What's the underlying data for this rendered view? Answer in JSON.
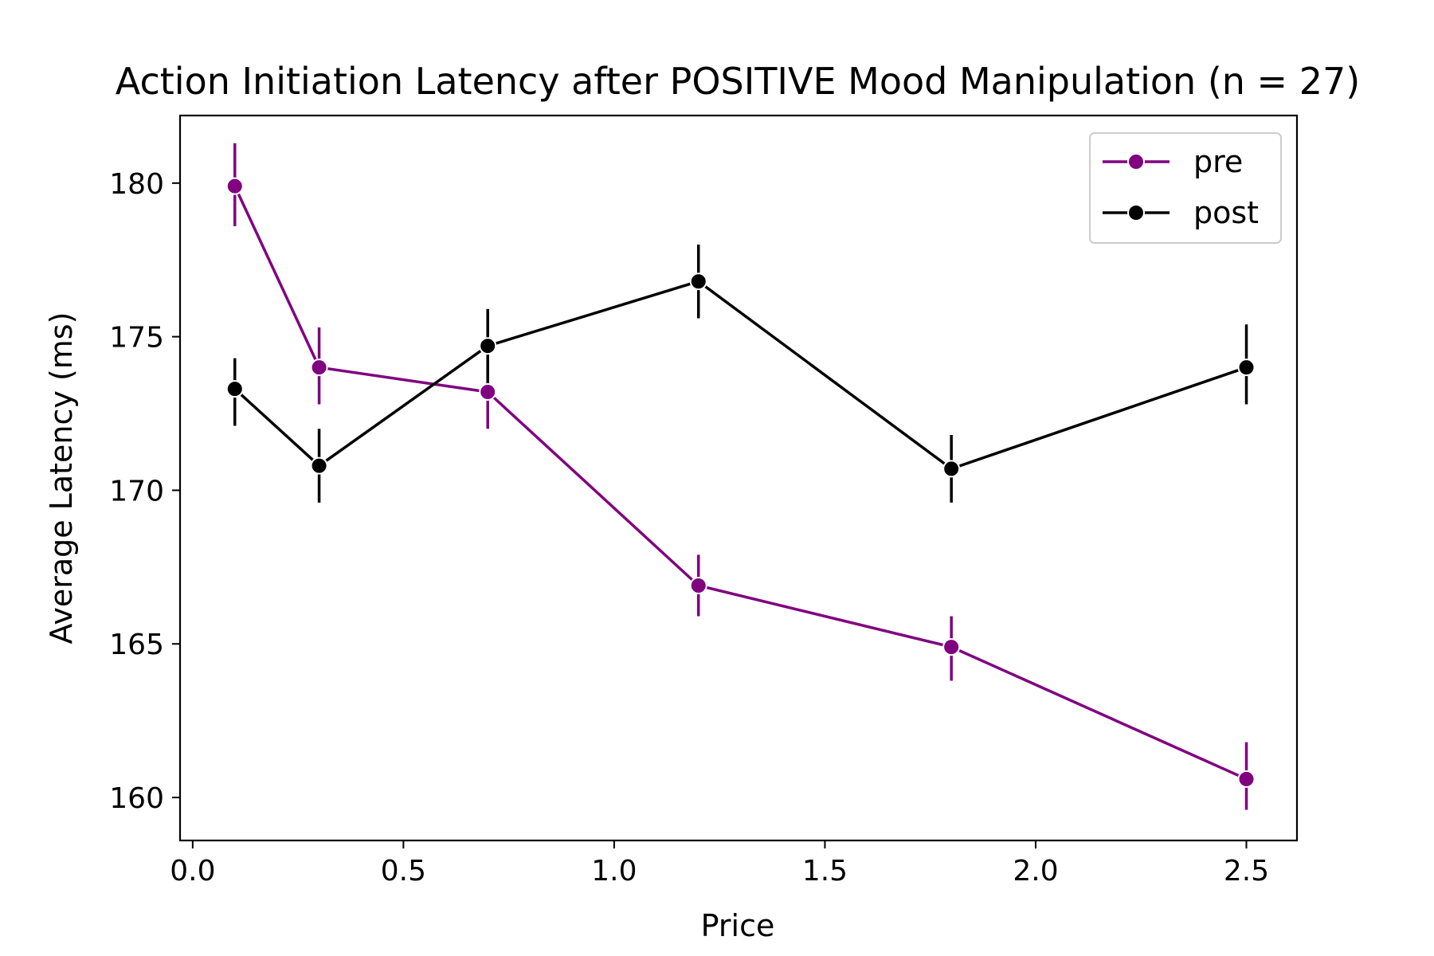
{
  "chart_data": {
    "type": "line",
    "title": "Action Initiation Latency after POSITIVE Mood Manipulation (n = 27)",
    "xlabel": "Price",
    "ylabel": "Average Latency (ms)",
    "xlim": [
      -0.03,
      2.62
    ],
    "ylim": [
      158.6,
      182.2
    ],
    "xticks": [
      0.0,
      0.5,
      1.0,
      1.5,
      2.0,
      2.5
    ],
    "xtick_labels": [
      "0.0",
      "0.5",
      "1.0",
      "1.5",
      "2.0",
      "2.5"
    ],
    "yticks": [
      160,
      165,
      170,
      175,
      180
    ],
    "ytick_labels": [
      "160",
      "165",
      "170",
      "175",
      "180"
    ],
    "grid": false,
    "legend_position": "top-right",
    "x": [
      0.1,
      0.3,
      0.7,
      1.2,
      1.8,
      2.5
    ],
    "series": [
      {
        "name": "pre",
        "color": "#800080",
        "values": [
          179.9,
          174.0,
          173.2,
          166.9,
          164.9,
          160.6
        ],
        "err_low": [
          178.6,
          172.8,
          172.0,
          165.9,
          163.8,
          159.6
        ],
        "err_high": [
          181.3,
          175.3,
          174.2,
          167.9,
          165.9,
          161.8
        ]
      },
      {
        "name": "post",
        "color": "#000000",
        "values": [
          173.3,
          170.8,
          174.7,
          176.8,
          170.7,
          174.0
        ],
        "err_low": [
          172.1,
          169.6,
          173.5,
          175.6,
          169.6,
          172.8
        ],
        "err_high": [
          174.3,
          172.0,
          175.9,
          178.0,
          171.8,
          175.4
        ]
      }
    ]
  }
}
